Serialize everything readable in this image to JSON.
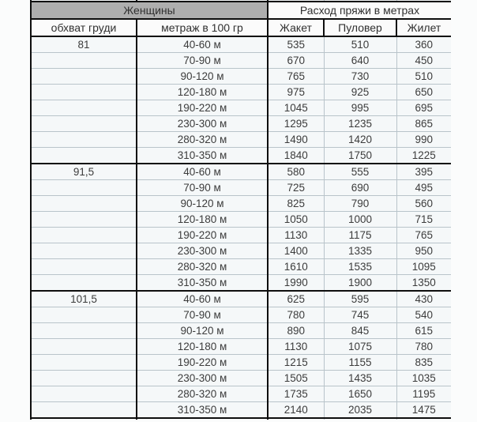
{
  "colors": {
    "header_gray_bg": "#aeaeae",
    "header_light_bg": "#fbfbfb",
    "cell_bg": "#f5f8f9",
    "border_dark": "#0e0e0e",
    "border_light": "#b9c4ca",
    "text": "#3c3c3c",
    "page_bg": "#fbfcfc"
  },
  "table": {
    "top_header": {
      "group_label": "Женщины",
      "usage_label": "Расход пряжи в метрах"
    },
    "columns": [
      "обхват груди",
      "метраж в 100 гр",
      "Жакет",
      "Пуловер",
      "Жилет"
    ],
    "groups": [
      {
        "chest": "81",
        "rows": [
          [
            "40-60 м",
            "535",
            "510",
            "360"
          ],
          [
            "70-90 м",
            "670",
            "640",
            "450"
          ],
          [
            "90-120 м",
            "765",
            "730",
            "510"
          ],
          [
            "120-180 м",
            "975",
            "925",
            "650"
          ],
          [
            "190-220 м",
            "1045",
            "995",
            "695"
          ],
          [
            "230-300 м",
            "1295",
            "1235",
            "865"
          ],
          [
            "280-320 м",
            "1490",
            "1420",
            "990"
          ],
          [
            "310-350 м",
            "1840",
            "1750",
            "1225"
          ]
        ]
      },
      {
        "chest": "91,5",
        "rows": [
          [
            "40-60 м",
            "580",
            "555",
            "395"
          ],
          [
            "70-90 м",
            "725",
            "690",
            "495"
          ],
          [
            "90-120 м",
            "825",
            "790",
            "560"
          ],
          [
            "120-180 м",
            "1050",
            "1000",
            "715"
          ],
          [
            "190-220 м",
            "1130",
            "1175",
            "765"
          ],
          [
            "230-300 м",
            "1400",
            "1335",
            "950"
          ],
          [
            "280-320 м",
            "1610",
            "1535",
            "1095"
          ],
          [
            "310-350 м",
            "1990",
            "1900",
            "1350"
          ]
        ]
      },
      {
        "chest": "101,5",
        "rows": [
          [
            "40-60 м",
            "625",
            "595",
            "430"
          ],
          [
            "70-90 м",
            "780",
            "745",
            "540"
          ],
          [
            "90-120 м",
            "890",
            "845",
            "615"
          ],
          [
            "120-180 м",
            "1130",
            "1075",
            "780"
          ],
          [
            "190-220 м",
            "1215",
            "1155",
            "835"
          ],
          [
            "230-300 м",
            "1505",
            "1435",
            "1035"
          ],
          [
            "280-320 м",
            "1735",
            "1650",
            "1195"
          ],
          [
            "310-350 м",
            "2140",
            "2035",
            "1475"
          ]
        ]
      }
    ]
  }
}
